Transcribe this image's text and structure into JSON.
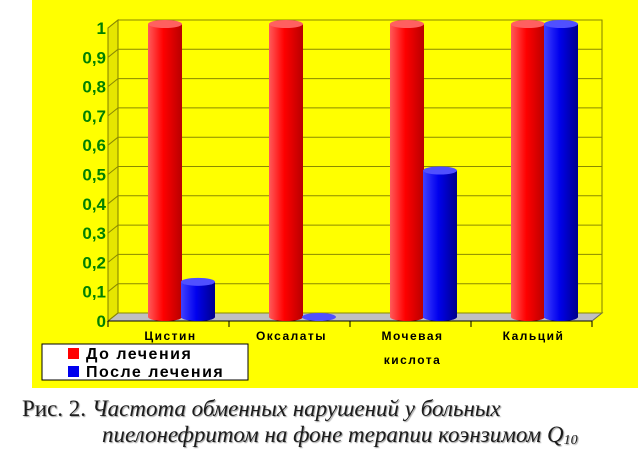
{
  "chart_data": {
    "type": "bar",
    "categories": [
      "Цистин",
      "Оксалаты",
      "Мочевая кислота",
      "Кальций"
    ],
    "category_lines": [
      [
        "Цистин"
      ],
      [
        "Оксалаты"
      ],
      [
        "Мочевая",
        "кислота"
      ],
      [
        "Кальций"
      ]
    ],
    "series": [
      {
        "name": "До лечения",
        "values": [
          1,
          1,
          1,
          1
        ],
        "color": "#ff0000"
      },
      {
        "name": "После лечения",
        "values": [
          0.12,
          0.0,
          0.5,
          1.0
        ],
        "color": "#0000ee"
      }
    ],
    "y_ticks": [
      "0",
      "0,1",
      "0,2",
      "0,3",
      "0,4",
      "0,5",
      "0,6",
      "0,7",
      "0,8",
      "0,9",
      "1"
    ],
    "ylim": [
      0,
      1
    ],
    "grid": true,
    "legend_position": "bottom-left",
    "background_color": "#ffff00",
    "tick_label_color": "#008000"
  },
  "caption": {
    "prefix": "Рис. 2.",
    "line1": "Частота обменных нарушений у больных",
    "line2": "пиелонефритом на фоне терапии коэнзимом Q",
    "subscript": "10"
  }
}
